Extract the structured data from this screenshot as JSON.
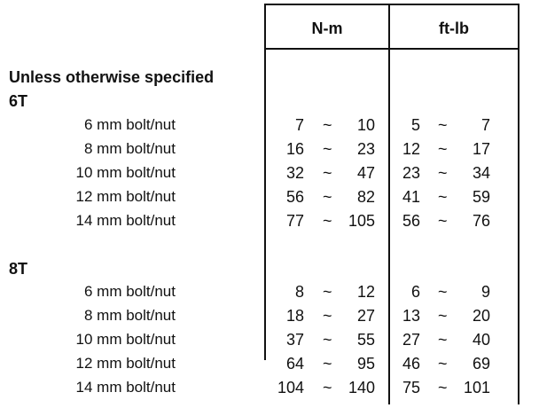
{
  "columns": {
    "nm": "N-m",
    "ftlb": "ft-lb"
  },
  "note": "Unless otherwise specified",
  "sections": [
    {
      "grade": "6T",
      "rows": [
        {
          "label": "6 mm bolt/nut",
          "nm_min": "7",
          "nm_max": "10",
          "ft_min": "5",
          "ft_max": "7"
        },
        {
          "label": "8 mm bolt/nut",
          "nm_min": "16",
          "nm_max": "23",
          "ft_min": "12",
          "ft_max": "17"
        },
        {
          "label": "10 mm bolt/nut",
          "nm_min": "32",
          "nm_max": "47",
          "ft_min": "23",
          "ft_max": "34"
        },
        {
          "label": "12 mm bolt/nut",
          "nm_min": "56",
          "nm_max": "82",
          "ft_min": "41",
          "ft_max": "59"
        },
        {
          "label": "14 mm bolt/nut",
          "nm_min": "77",
          "nm_max": "105",
          "ft_min": "56",
          "ft_max": "76"
        }
      ]
    },
    {
      "grade": "8T",
      "rows": [
        {
          "label": "6 mm bolt/nut",
          "nm_min": "8",
          "nm_max": "12",
          "ft_min": "6",
          "ft_max": "9"
        },
        {
          "label": "8 mm bolt/nut",
          "nm_min": "18",
          "nm_max": "27",
          "ft_min": "13",
          "ft_max": "20"
        },
        {
          "label": "10 mm bolt/nut",
          "nm_min": "37",
          "nm_max": "55",
          "ft_min": "27",
          "ft_max": "40"
        },
        {
          "label": "12 mm bolt/nut",
          "nm_min": "64",
          "nm_max": "95",
          "ft_min": "46",
          "ft_max": "69"
        },
        {
          "label": "14 mm bolt/nut",
          "nm_min": "104",
          "nm_max": "140",
          "ft_min": "75",
          "ft_max": "101"
        }
      ]
    }
  ],
  "range_symbol": "~"
}
